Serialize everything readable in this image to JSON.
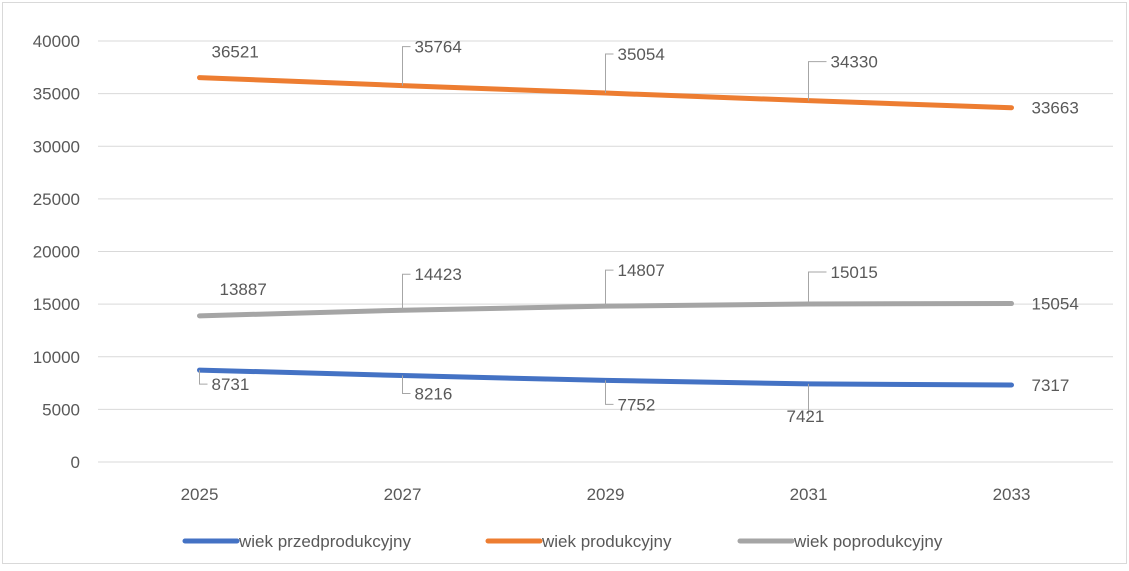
{
  "chart_data": {
    "type": "line",
    "x": [
      "2025",
      "2027",
      "2029",
      "2031",
      "2033"
    ],
    "ylim": [
      0,
      40000
    ],
    "yticks": [
      0,
      5000,
      10000,
      15000,
      20000,
      25000,
      30000,
      35000,
      40000
    ],
    "grid": true,
    "legend": "bottom",
    "series": [
      {
        "name": "wiek przedprodukcyjny",
        "color": "#4472c4",
        "values": [
          8731,
          8216,
          7752,
          7421,
          7317
        ]
      },
      {
        "name": "wiek produkcyjny",
        "color": "#ed7d31",
        "values": [
          36521,
          35764,
          35054,
          34330,
          33663
        ]
      },
      {
        "name": "wiek poprodukcyjny",
        "color": "#a5a5a5",
        "values": [
          13887,
          14423,
          14807,
          15015,
          15054
        ]
      }
    ]
  }
}
